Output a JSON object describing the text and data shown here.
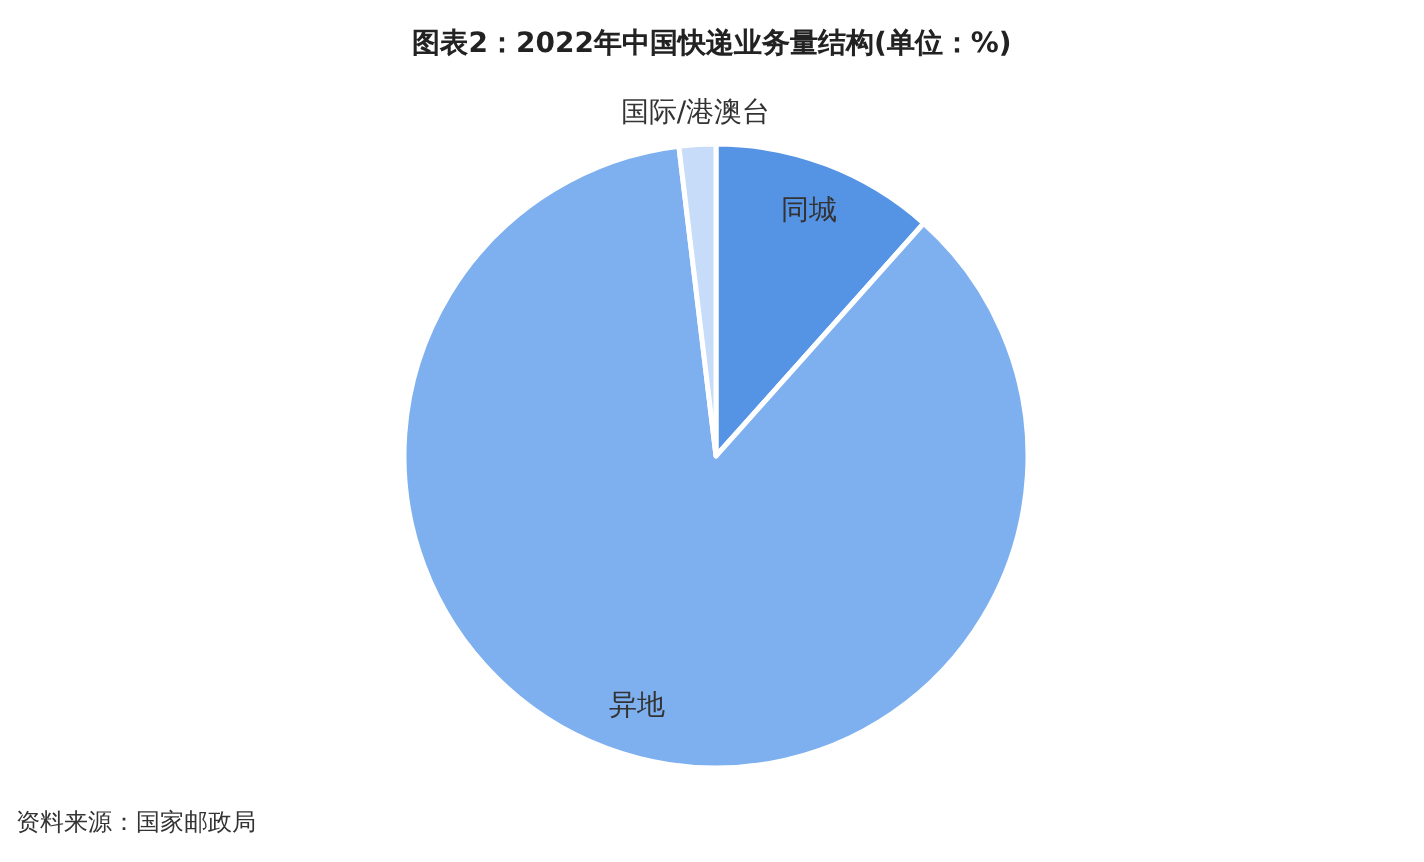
{
  "chart_data": {
    "type": "pie",
    "title": "图表2：2022年中国快递业务量结构(单位：%)",
    "categories": [
      "同城",
      "异地",
      "国际/港澳台"
    ],
    "values": [
      11.6,
      86.5,
      1.9
    ],
    "colors": [
      "#5593e4",
      "#7eb0ef",
      "#c6dcf8"
    ],
    "annotations": [
      "资料来源：国家邮政局"
    ]
  }
}
